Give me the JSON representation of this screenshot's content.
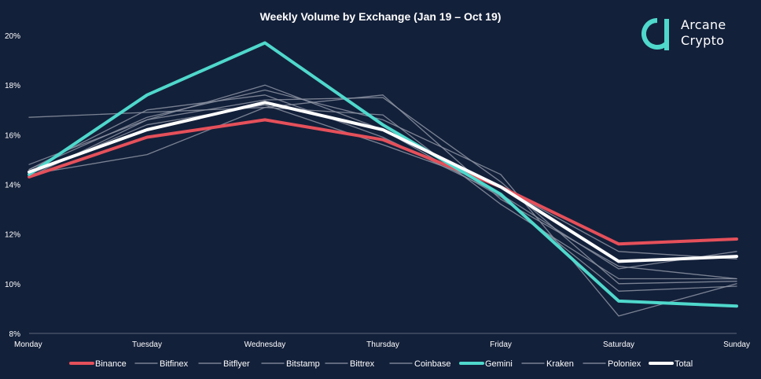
{
  "brand": {
    "line1": "Arcane",
    "line2": "Crypto",
    "accent_color": "#4fd8cc",
    "icon": "arcane-logo-icon"
  },
  "chart_data": {
    "type": "line",
    "title": "Weekly Volume by Exchange (Jan 19 – Oct 19)",
    "xlabel": "",
    "ylabel": "",
    "categories": [
      "Monday",
      "Tuesday",
      "Wednesday",
      "Thursday",
      "Friday",
      "Saturday",
      "Sunday"
    ],
    "ylim": [
      8,
      20
    ],
    "yticks": [
      8,
      10,
      12,
      14,
      16,
      18,
      20
    ],
    "ytick_labels": [
      "8%",
      "10%",
      "12%",
      "14%",
      "16%",
      "18%",
      "20%"
    ],
    "grid": false,
    "legend_position": "bottom",
    "series": [
      {
        "name": "Bitfinex",
        "color": "#8d94a3",
        "emphasis": false,
        "values": [
          16.7,
          16.9,
          17.1,
          17.6,
          13.4,
          10.7,
          10.2
        ]
      },
      {
        "name": "Bitflyer",
        "color": "#8d94a3",
        "emphasis": false,
        "values": [
          14.6,
          16.7,
          17.8,
          16.6,
          14.4,
          8.7,
          10.0
        ]
      },
      {
        "name": "Bitstamp",
        "color": "#8d94a3",
        "emphasis": false,
        "values": [
          14.4,
          15.2,
          17.1,
          16.8,
          13.2,
          10.2,
          10.2
        ]
      },
      {
        "name": "Bittrex",
        "color": "#8d94a3",
        "emphasis": false,
        "values": [
          14.8,
          16.6,
          18.0,
          16.2,
          13.5,
          9.7,
          9.9
        ]
      },
      {
        "name": "Coinbase",
        "color": "#8d94a3",
        "emphasis": false,
        "values": [
          14.4,
          16.4,
          17.2,
          15.6,
          13.9,
          11.3,
          11.0
        ]
      },
      {
        "name": "Kraken",
        "color": "#8d94a3",
        "emphasis": false,
        "values": [
          14.6,
          17.0,
          17.6,
          15.9,
          13.6,
          10.6,
          11.3
        ]
      },
      {
        "name": "Poloniex",
        "color": "#8d94a3",
        "emphasis": false,
        "values": [
          14.3,
          16.6,
          17.4,
          17.5,
          14.1,
          10.0,
          10.1
        ]
      },
      {
        "name": "Binance",
        "color": "#e5505a",
        "emphasis": true,
        "values": [
          14.3,
          15.9,
          16.6,
          15.8,
          13.9,
          11.6,
          11.8
        ]
      },
      {
        "name": "Gemini",
        "color": "#4fd8cc",
        "emphasis": true,
        "values": [
          14.4,
          17.6,
          19.7,
          16.4,
          13.6,
          9.3,
          9.1
        ]
      },
      {
        "name": "Total",
        "color": "#ffffff",
        "emphasis": true,
        "values": [
          14.5,
          16.2,
          17.3,
          16.2,
          13.9,
          10.9,
          11.1
        ]
      }
    ],
    "legend_order": [
      "Binance",
      "Bitfinex",
      "Bitflyer",
      "Bitstamp",
      "Bittrex",
      "Coinbase",
      "Gemini",
      "Kraken",
      "Poloniex",
      "Total"
    ]
  }
}
